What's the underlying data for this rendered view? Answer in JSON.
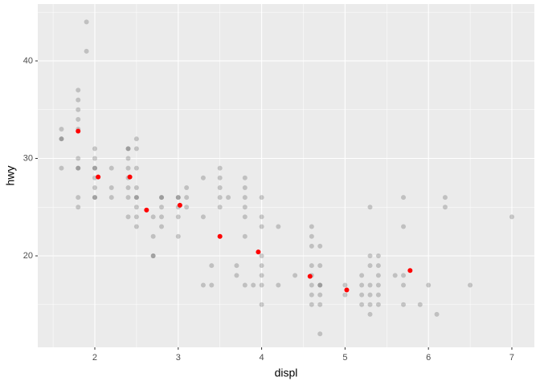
{
  "chart_data": {
    "type": "scatter",
    "x_label": "displ",
    "y_label": "hwy",
    "xlim": [
      1.316,
      7.27
    ],
    "ylim": [
      10.62,
      45.84
    ],
    "xticks": [
      2,
      3,
      4,
      5,
      6,
      7
    ],
    "yticks": [
      20,
      30,
      40
    ],
    "grid": true,
    "series": [
      {
        "color": "#000000",
        "opacity": 0.18,
        "x": [
          1.6,
          1.6,
          1.6,
          1.6,
          1.8,
          1.8,
          1.8,
          1.8,
          1.8,
          1.8,
          1.8,
          1.8,
          1.8,
          1.8,
          1.9,
          1.9,
          2.0,
          2.0,
          2.0,
          2.0,
          2.0,
          2.0,
          2.0,
          2.0,
          2.2,
          2.2,
          2.2,
          2.4,
          2.4,
          2.4,
          2.4,
          2.4,
          2.4,
          2.4,
          2.4,
          2.5,
          2.5,
          2.5,
          2.5,
          2.5,
          2.5,
          2.5,
          2.5,
          2.5,
          2.7,
          2.7,
          2.7,
          2.7,
          2.8,
          2.8,
          2.8,
          2.8,
          2.8,
          3.0,
          3.0,
          3.0,
          3.0,
          3.0,
          3.1,
          3.1,
          3.1,
          3.3,
          3.3,
          3.3,
          3.4,
          3.4,
          3.5,
          3.5,
          3.5,
          3.5,
          3.5,
          3.5,
          3.6,
          3.7,
          3.7,
          3.8,
          3.8,
          3.8,
          3.8,
          3.8,
          3.8,
          3.8,
          3.9,
          4.0,
          4.0,
          4.0,
          4.0,
          4.0,
          4.0,
          4.0,
          4.0,
          4.2,
          4.2,
          4.4,
          4.6,
          4.6,
          4.6,
          4.6,
          4.6,
          4.6,
          4.6,
          4.6,
          4.7,
          4.7,
          4.7,
          4.7,
          4.7,
          4.7,
          4.7,
          5.0,
          5.0,
          5.2,
          5.2,
          5.2,
          5.2,
          5.3,
          5.3,
          5.3,
          5.3,
          5.3,
          5.3,
          5.3,
          5.4,
          5.4,
          5.4,
          5.4,
          5.4,
          5.4,
          5.6,
          5.7,
          5.7,
          5.7,
          5.7,
          5.7,
          5.9,
          6.0,
          6.1,
          6.2,
          6.2,
          6.5,
          7.0
        ],
        "values": [
          33,
          32,
          32,
          29,
          37,
          36,
          35,
          34,
          30,
          29,
          29,
          26,
          25,
          33,
          44,
          41,
          31,
          30,
          29,
          29,
          28,
          27,
          26,
          26,
          29,
          27,
          26,
          31,
          31,
          30,
          29,
          28,
          27,
          26,
          24,
          32,
          31,
          29,
          27,
          26,
          26,
          25,
          24,
          23,
          24,
          22,
          20,
          20,
          26,
          26,
          25,
          24,
          23,
          26,
          26,
          25,
          24,
          22,
          27,
          26,
          25,
          28,
          24,
          17,
          19,
          17,
          29,
          28,
          27,
          26,
          25,
          22,
          26,
          19,
          18,
          28,
          27,
          26,
          25,
          24,
          22,
          17,
          17,
          26,
          24,
          23,
          20,
          19,
          18,
          17,
          15,
          23,
          17,
          18,
          23,
          22,
          21,
          19,
          18,
          17,
          16,
          15,
          21,
          19,
          17,
          17,
          16,
          15,
          12,
          17,
          16,
          18,
          17,
          16,
          15,
          25,
          20,
          19,
          17,
          16,
          15,
          14,
          20,
          19,
          18,
          17,
          16,
          15,
          18,
          26,
          23,
          18,
          17,
          15,
          15,
          17,
          14,
          26,
          25,
          17,
          24
        ]
      },
      {
        "color": "#ff0000",
        "opacity": 1,
        "x": [
          1.8,
          2.04,
          2.42,
          2.62,
          3.02,
          3.5,
          3.96,
          4.58,
          5.02,
          5.78
        ],
        "values": [
          32.8,
          28.1,
          28.1,
          24.7,
          25.2,
          22.0,
          20.4,
          17.9,
          16.5,
          18.5
        ]
      }
    ]
  }
}
